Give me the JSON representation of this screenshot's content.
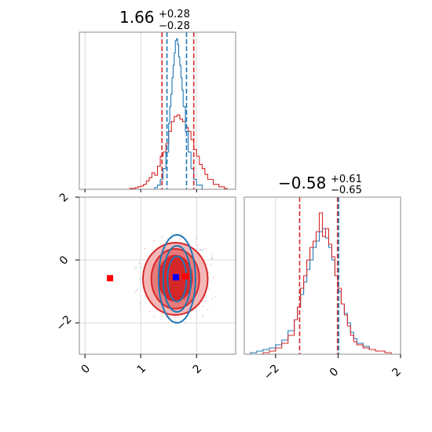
{
  "chart_data": {
    "type": "corner",
    "colors": {
      "red": "#d62728",
      "blue": "#1f77b4",
      "red_fill_light": "#f4b6b6",
      "red_fill_mid": "#e97a7a",
      "red_fill_dark": "#d62728",
      "grid": "#d8d8d8",
      "marker_blue": "#0000ff",
      "marker_red": "#ff0000"
    },
    "grid": true,
    "panels": {
      "hist_top": {
        "title": {
          "value": "1.66",
          "upper": "+0.28",
          "lower": "−0.28"
        },
        "xlim": [
          -0.1,
          2.7
        ],
        "x_ticks": [
          0,
          1,
          2
        ],
        "red_quantile_lines": [
          1.38,
          1.95
        ],
        "blue_quantile_lines": [
          1.47,
          1.82
        ],
        "red_hist": {
          "x": [
            0.7,
            0.8,
            0.9,
            0.95,
            1.0,
            1.05,
            1.1,
            1.15,
            1.2,
            1.25,
            1.3,
            1.35,
            1.4,
            1.45,
            1.5,
            1.55,
            1.6,
            1.65,
            1.7,
            1.75,
            1.8,
            1.85,
            1.9,
            1.95,
            2.0,
            2.05,
            2.1,
            2.15,
            2.2,
            2.3,
            2.4,
            2.5
          ],
          "y": [
            0,
            1,
            2,
            3,
            4,
            6,
            10,
            14,
            20,
            17,
            28,
            40,
            45,
            55,
            70,
            82,
            88,
            90,
            85,
            82,
            75,
            70,
            60,
            48,
            40,
            30,
            25,
            18,
            12,
            6,
            3,
            1
          ]
        },
        "blue_hist": {
          "x": [
            1.2,
            1.25,
            1.3,
            1.35,
            1.4,
            1.45,
            1.5,
            1.52,
            1.54,
            1.56,
            1.58,
            1.6,
            1.62,
            1.64,
            1.66,
            1.68,
            1.7,
            1.72,
            1.74,
            1.76,
            1.8,
            1.85,
            1.9,
            1.95,
            2.0,
            2.1
          ],
          "y": [
            0,
            2,
            5,
            12,
            25,
            45,
            80,
            100,
            115,
            135,
            150,
            165,
            180,
            182,
            175,
            160,
            150,
            135,
            120,
            100,
            70,
            45,
            25,
            12,
            5,
            0
          ]
        }
      },
      "hist_bottom": {
        "title": {
          "value": "−0.58",
          "upper": "+0.61",
          "lower": "−0.65"
        },
        "xlim": [
          -3.0,
          2.0
        ],
        "x_ticks": [
          -2,
          0,
          2
        ],
        "red_quantile_lines": [
          -1.23
        ],
        "blue_quantile_lines": [
          0.02
        ],
        "red_hist": {
          "x": [
            -2.6,
            -2.4,
            -2.2,
            -2.0,
            -1.8,
            -1.6,
            -1.4,
            -1.3,
            -1.2,
            -1.1,
            -1.0,
            -0.9,
            -0.8,
            -0.7,
            -0.6,
            -0.5,
            -0.4,
            -0.3,
            -0.2,
            -0.1,
            0.0,
            0.1,
            0.2,
            0.3,
            0.4,
            0.5,
            0.6,
            0.8,
            1.0,
            1.2,
            1.5,
            1.7
          ],
          "y": [
            0,
            1,
            2,
            4,
            7,
            12,
            22,
            30,
            42,
            50,
            60,
            68,
            72,
            78,
            90,
            75,
            80,
            70,
            62,
            50,
            42,
            32,
            25,
            18,
            12,
            8,
            6,
            4,
            3,
            2,
            1,
            0
          ]
        },
        "blue_hist": {
          "x": [
            -2.8,
            -2.6,
            -2.4,
            -2.2,
            -2.0,
            -1.8,
            -1.6,
            -1.4,
            -1.3,
            -1.2,
            -1.1,
            -1.0,
            -0.9,
            -0.8,
            -0.7,
            -0.6,
            -0.5,
            -0.4,
            -0.3,
            -0.2,
            -0.1,
            0.0,
            0.1,
            0.2,
            0.3,
            0.4,
            0.5,
            0.6,
            0.8,
            1.0,
            1.2,
            1.5
          ],
          "y": [
            1,
            2,
            3,
            4,
            6,
            9,
            15,
            22,
            30,
            38,
            46,
            54,
            60,
            68,
            72,
            78,
            80,
            74,
            68,
            60,
            50,
            40,
            32,
            26,
            20,
            14,
            10,
            7,
            5,
            3,
            2,
            1
          ]
        }
      },
      "scatter_2d": {
        "xlim": [
          -0.1,
          2.7
        ],
        "ylim": [
          -3.0,
          2.0
        ],
        "x_ticks": [
          0,
          1,
          2
        ],
        "y_ticks": [
          2,
          0,
          -2
        ],
        "red_contours": [
          {
            "level": "outer",
            "cx": 1.62,
            "cy": -0.6,
            "rx": 0.58,
            "ry": 1.15
          },
          {
            "level": "middle",
            "cx": 1.62,
            "cy": -0.6,
            "rx": 0.43,
            "ry": 0.95
          },
          {
            "level": "inner",
            "cx": 1.62,
            "cy": -0.58,
            "rx": 0.3,
            "ry": 0.72
          }
        ],
        "blue_contours": [
          {
            "level": "outer",
            "cx": 1.65,
            "cy": -0.6,
            "rx": 0.33,
            "ry": 1.4
          },
          {
            "level": "middle",
            "cx": 1.65,
            "cy": -0.6,
            "rx": 0.25,
            "ry": 1.05
          },
          {
            "level": "inner",
            "cx": 1.65,
            "cy": -0.6,
            "rx": 0.17,
            "ry": 0.72
          }
        ],
        "markers": [
          {
            "color": "red",
            "x": 0.45,
            "y": -0.58
          },
          {
            "color": "red",
            "x": 1.8,
            "y": -0.52
          },
          {
            "color": "blue",
            "x": 1.63,
            "y": -0.55
          }
        ]
      }
    }
  }
}
